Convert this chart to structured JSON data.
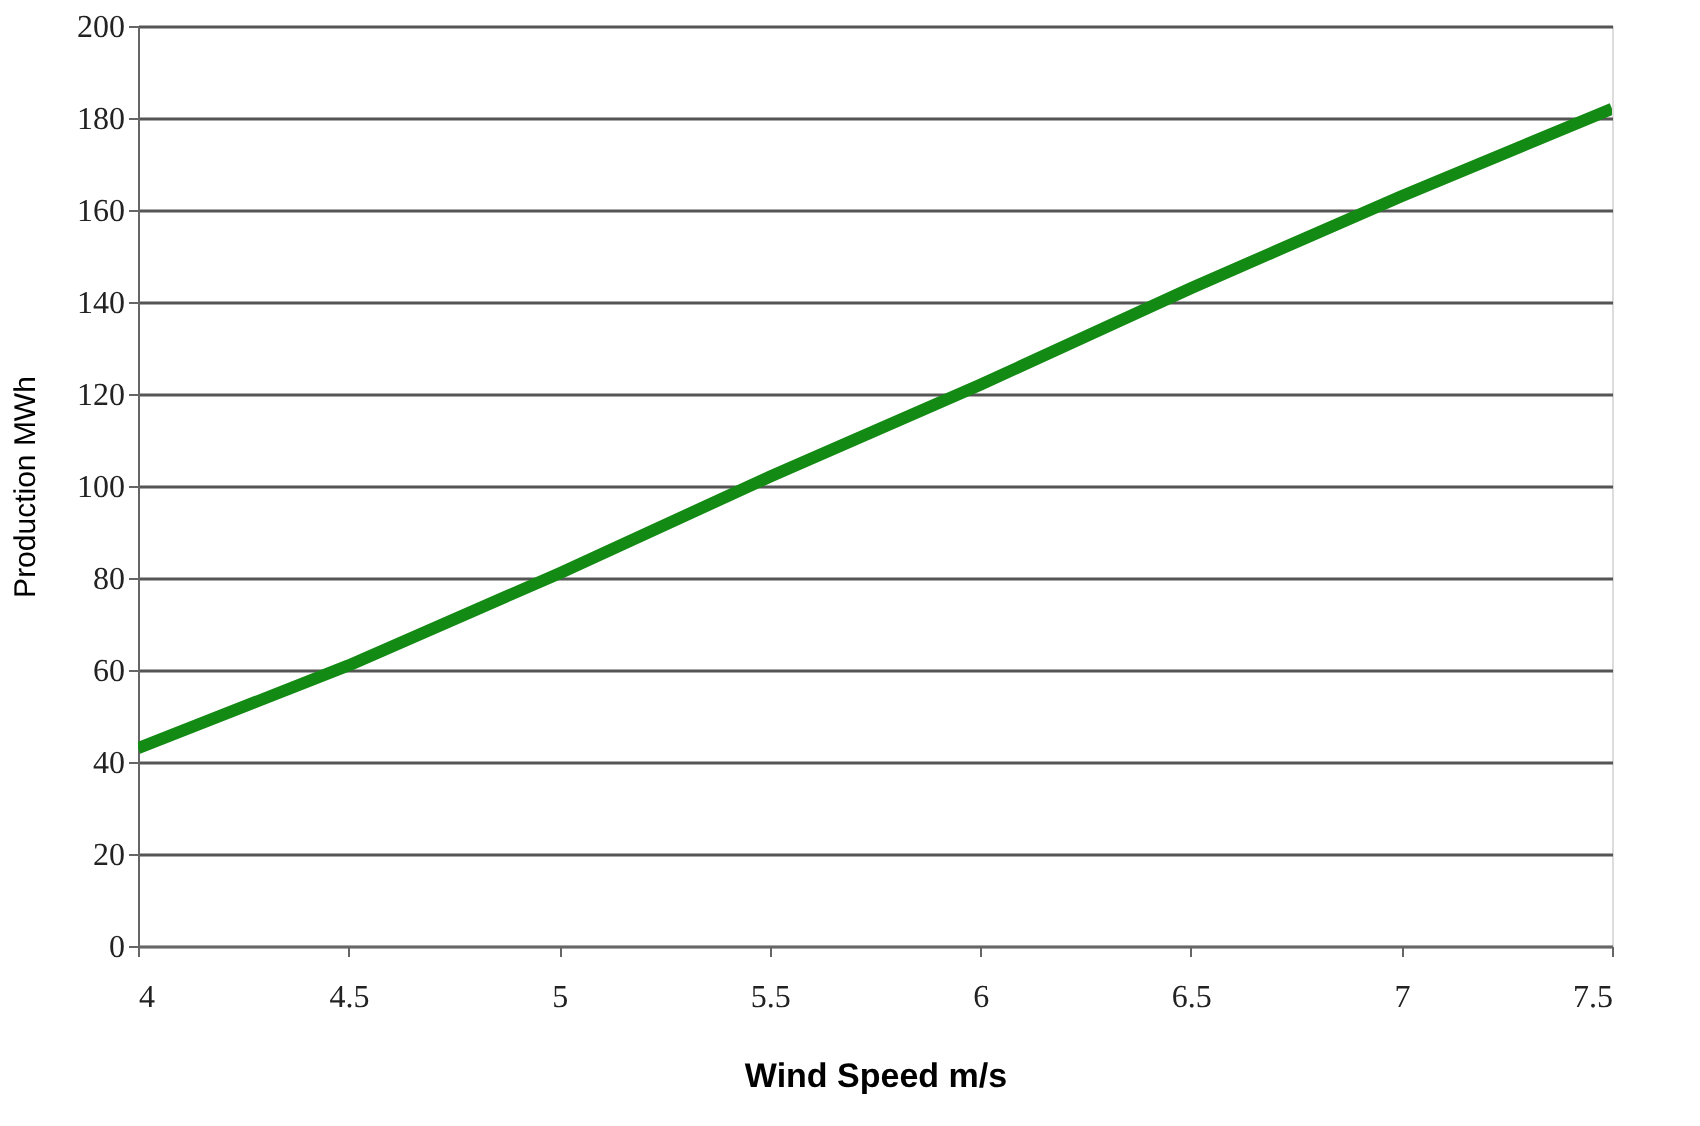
{
  "chart_data": {
    "type": "line",
    "xlabel": "Wind Speed m/s",
    "ylabel": "Production MWh",
    "x": [
      4,
      4.5,
      5,
      5.5,
      6,
      6.5,
      7,
      7.5
    ],
    "series": [
      {
        "color": "#138a13",
        "values": [
          43,
          61,
          81,
          102,
          122,
          143,
          163,
          182
        ]
      }
    ],
    "xlim": [
      4,
      7.5
    ],
    "xticks": [
      4,
      4.5,
      5,
      5.5,
      6,
      6.5,
      7,
      7.5
    ],
    "ylim": [
      0,
      200
    ],
    "yticks": [
      0,
      20,
      40,
      60,
      80,
      100,
      120,
      140,
      160,
      180,
      200
    ],
    "grid": "y",
    "marker": "none",
    "line_style": "solid"
  }
}
